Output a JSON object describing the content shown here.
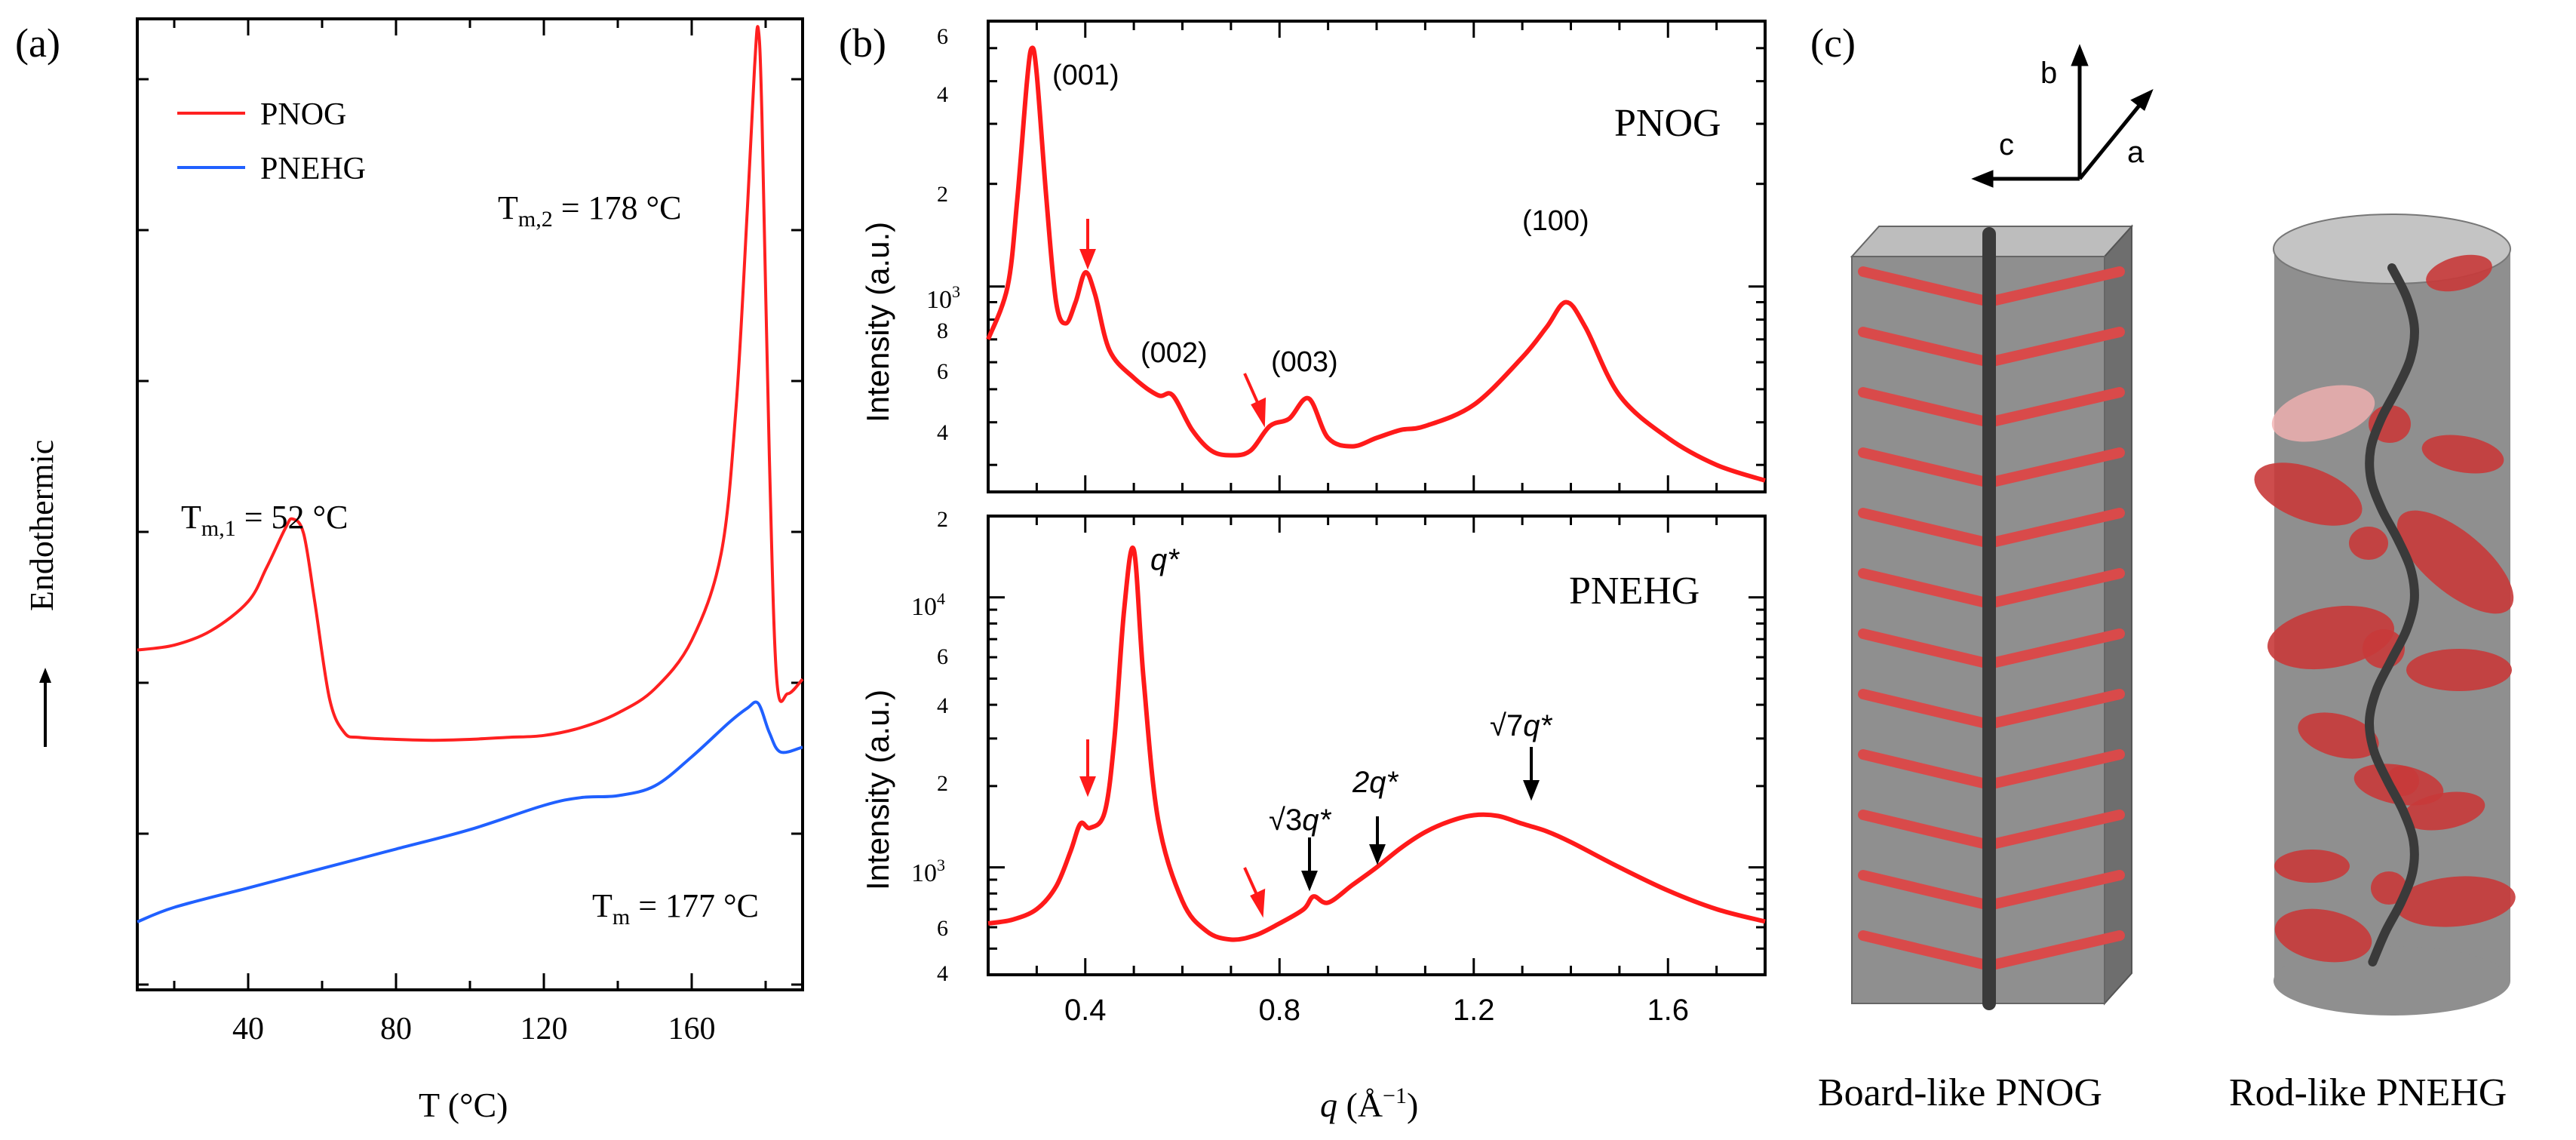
{
  "panel_labels": {
    "a": "(a)",
    "b": "(b)",
    "c": "(c)"
  },
  "panel_a": {
    "legend": [
      {
        "name": "PNOG",
        "color": "#ff2020"
      },
      {
        "name": "PNEHG",
        "color": "#2060ff"
      }
    ],
    "ylabel": "Endothermic",
    "xlabel": "T (°C)",
    "annotations": {
      "tm1": "T",
      "tm1_sub": "m,1",
      "tm1_val": " = 52 °C",
      "tm2": "T",
      "tm2_sub": "m,2",
      "tm2_val": " = 178 °C",
      "tm": "T",
      "tm_sub": "m",
      "tm_val": " = 177 °C"
    }
  },
  "panel_b": {
    "top_title": "PNOG",
    "bottom_title": "PNEHG",
    "ylabel": "Intensity (a.u.)",
    "xlabel_q": "q",
    "xlabel_unit": " (Å",
    "xlabel_exp": "−1",
    "xlabel_close": ")",
    "peak_labels": {
      "p001": "(001)",
      "p002": "(002)",
      "p003": "(003)",
      "p100": "(100)"
    },
    "hex_labels": {
      "q1": "q*",
      "q3_root": "√3",
      "q3_q": "q*",
      "q2": "2q*",
      "q7_root": "√7",
      "q7_q": "q*"
    },
    "top_yticks": [
      "6",
      "4",
      "2",
      "10",
      "8",
      "6",
      "4"
    ],
    "top_ytick_exp": "3",
    "bottom_yticks": [
      "2",
      "10",
      "6",
      "4",
      "2",
      "10",
      "6",
      "4"
    ],
    "bottom_ytick_exp_hi": "4",
    "bottom_ytick_exp_lo": "3"
  },
  "panel_c": {
    "axis_labels": {
      "a": "a",
      "b": "b",
      "c": "c"
    },
    "caption_left": "Board-like PNOG",
    "caption_right": "Rod-like PNEHG",
    "colors": {
      "body": "#8c8c8c",
      "side": "#7a7a7a",
      "top": "#bdbdbd",
      "chain": "#d94a4a",
      "backbone": "#3a3a3a"
    }
  },
  "chart_data": [
    {
      "type": "line",
      "title": "",
      "xlabel": "T (°C)",
      "ylabel": "Endothermic",
      "xlim": [
        10,
        190
      ],
      "xticks": [
        40,
        80,
        120,
        160
      ],
      "ylim": [
        0,
        10
      ],
      "series": [
        {
          "name": "PNOG",
          "color": "#ff2020",
          "x": [
            10,
            20,
            30,
            40,
            45,
            50,
            52,
            55,
            58,
            62,
            66,
            70,
            80,
            90,
            100,
            110,
            120,
            130,
            140,
            150,
            160,
            168,
            172,
            175,
            177,
            178,
            179,
            181,
            183,
            186,
            190
          ],
          "y": [
            3.5,
            3.55,
            3.7,
            4.0,
            4.35,
            4.75,
            4.85,
            4.7,
            4.0,
            3.0,
            2.65,
            2.6,
            2.58,
            2.57,
            2.58,
            2.6,
            2.62,
            2.7,
            2.85,
            3.1,
            3.6,
            4.5,
            6.0,
            8.0,
            9.5,
            9.9,
            9.0,
            5.5,
            3.2,
            3.05,
            3.2
          ]
        },
        {
          "name": "PNEHG",
          "color": "#2060ff",
          "x": [
            10,
            20,
            40,
            60,
            80,
            100,
            120,
            130,
            140,
            150,
            160,
            170,
            175,
            178,
            181,
            184,
            190
          ],
          "y": [
            0.7,
            0.85,
            1.05,
            1.25,
            1.45,
            1.65,
            1.9,
            1.98,
            2.0,
            2.1,
            2.4,
            2.75,
            2.9,
            2.95,
            2.65,
            2.45,
            2.5
          ]
        }
      ]
    },
    {
      "type": "line",
      "title": "PNOG",
      "xlabel": "q (Å−1)",
      "ylabel": "Intensity (a.u.)",
      "xlim": [
        0.2,
        1.8
      ],
      "ylim": [
        250,
        6000
      ],
      "yscale": "log",
      "series": [
        {
          "name": "PNOG",
          "x": [
            0.2,
            0.24,
            0.26,
            0.28,
            0.29,
            0.3,
            0.32,
            0.34,
            0.36,
            0.38,
            0.4,
            0.42,
            0.45,
            0.5,
            0.55,
            0.58,
            0.62,
            0.66,
            0.7,
            0.74,
            0.78,
            0.82,
            0.86,
            0.9,
            0.95,
            1.0,
            1.05,
            1.1,
            1.2,
            1.3,
            1.35,
            1.39,
            1.43,
            1.5,
            1.6,
            1.7,
            1.8
          ],
          "y": [
            700,
            1000,
            1800,
            4000,
            5000,
            4200,
            1800,
            900,
            780,
            900,
            1100,
            950,
            650,
            540,
            480,
            480,
            380,
            330,
            320,
            330,
            390,
            410,
            470,
            360,
            340,
            360,
            380,
            390,
            450,
            620,
            760,
            900,
            760,
            480,
            360,
            300,
            270
          ]
        }
      ]
    },
    {
      "type": "line",
      "title": "PNEHG",
      "xlabel": "q (Å−1)",
      "ylabel": "Intensity (a.u.)",
      "xlim": [
        0.2,
        1.8
      ],
      "ylim": [
        400,
        20000
      ],
      "yscale": "log",
      "series": [
        {
          "name": "PNEHG",
          "x": [
            0.2,
            0.25,
            0.3,
            0.34,
            0.37,
            0.39,
            0.41,
            0.44,
            0.46,
            0.48,
            0.5,
            0.52,
            0.55,
            0.6,
            0.65,
            0.7,
            0.75,
            0.8,
            0.85,
            0.87,
            0.9,
            0.95,
            1.0,
            1.05,
            1.1,
            1.15,
            1.2,
            1.25,
            1.3,
            1.35,
            1.4,
            1.5,
            1.6,
            1.7,
            1.8
          ],
          "y": [
            620,
            640,
            700,
            850,
            1150,
            1450,
            1400,
            1600,
            3000,
            9000,
            15000,
            5000,
            1500,
            750,
            580,
            540,
            560,
            620,
            700,
            780,
            740,
            860,
            1000,
            1180,
            1350,
            1480,
            1560,
            1550,
            1450,
            1360,
            1240,
            1000,
            820,
            700,
            630
          ]
        }
      ]
    }
  ]
}
